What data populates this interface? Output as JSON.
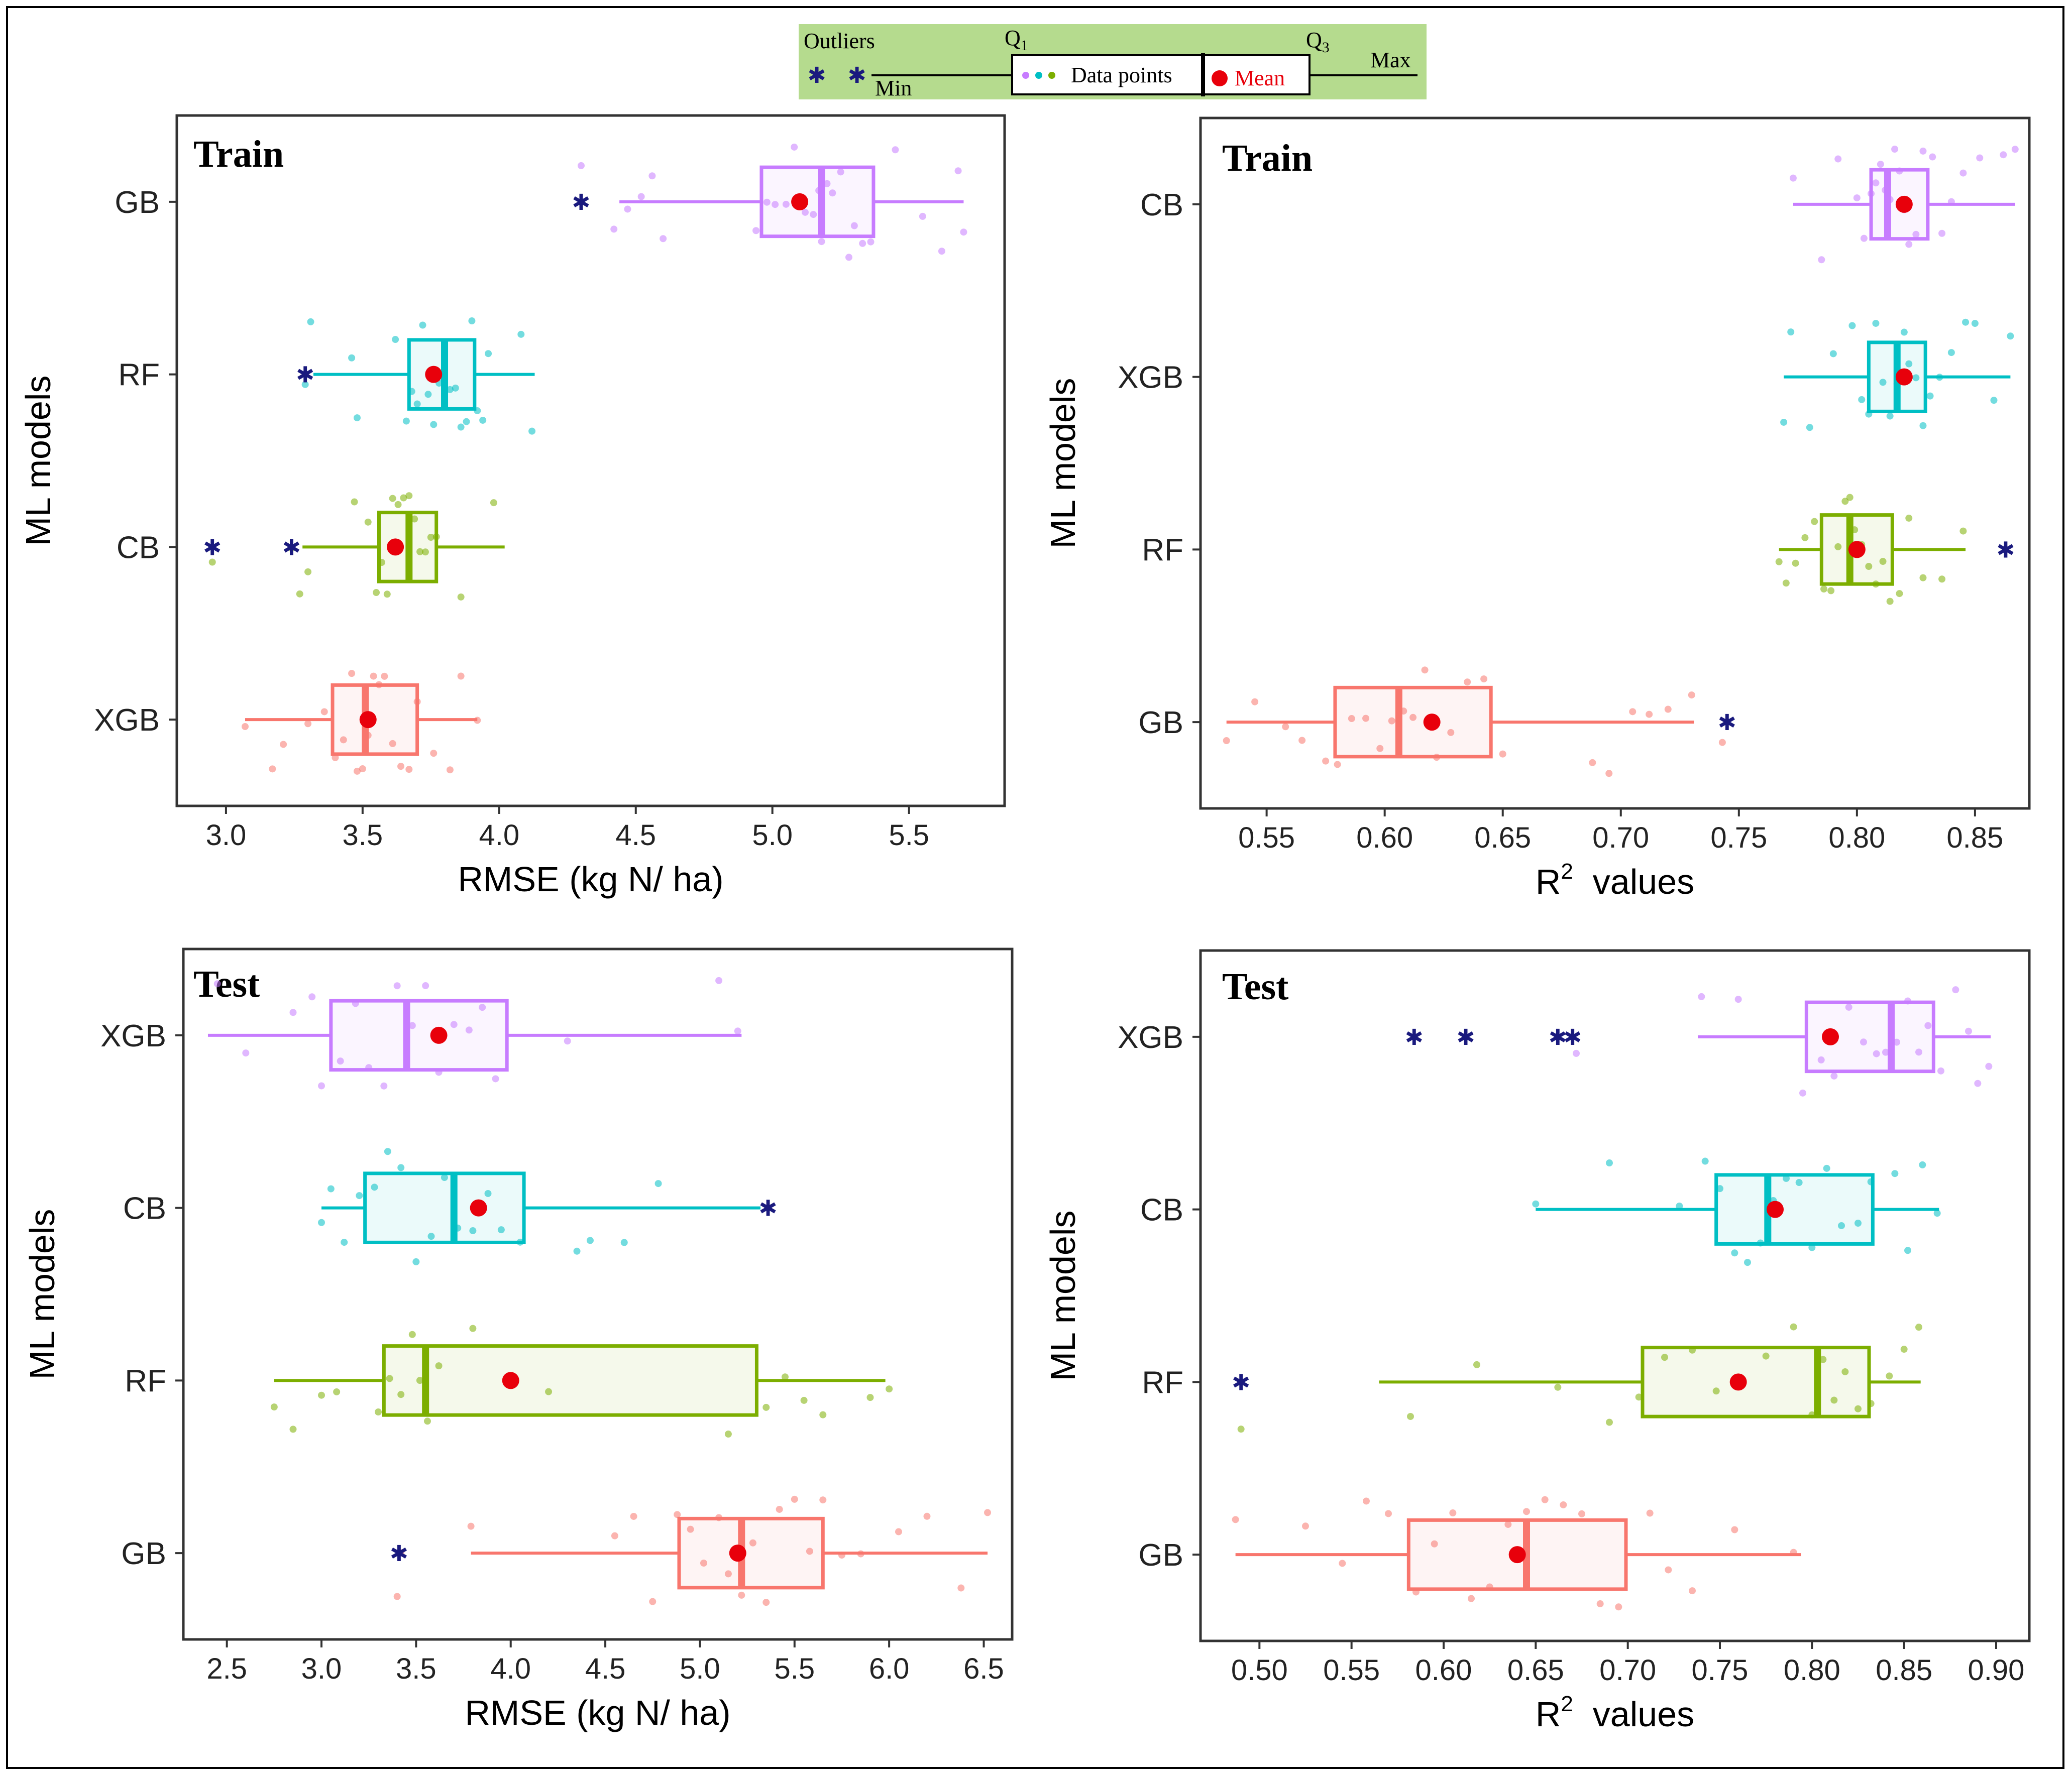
{
  "colors": {
    "purple": "#C77CFF",
    "cyan": "#00BFC4",
    "green": "#7CAE00",
    "salmon": "#F8766D",
    "outlier": "#1A1A7E",
    "mean": "#E8000B",
    "legend_bg": "#B5DB8E",
    "frame": "#000000",
    "panel_border": "#333333"
  },
  "legend": {
    "outliers": "Outliers",
    "min": "Min",
    "q1": "Q",
    "q1_sub": "1",
    "data_points": "Data points",
    "mean": "Mean",
    "q3": "Q",
    "q3_sub": "3",
    "max": "Max"
  },
  "chart_data": [
    {
      "id": "train-rmse",
      "type": "boxplot",
      "orientation": "horizontal",
      "title": "Train",
      "xlabel": "RMSE (kg N/ ha)",
      "ylabel": "ML models",
      "xlim": [
        2.82,
        5.85
      ],
      "xticks": [
        3.0,
        3.5,
        4.0,
        4.5,
        5.0,
        5.5
      ],
      "tick_labels": [
        "3.0",
        "3.5",
        "4.0",
        "4.5",
        "5.0",
        "5.5"
      ],
      "categories": [
        "GB",
        "RF",
        "CB",
        "XGB"
      ],
      "series": [
        {
          "name": "GB",
          "color": "purple",
          "min": 4.44,
          "q1": 4.96,
          "median": 5.18,
          "q3": 5.37,
          "max": 5.7,
          "mean": 5.1,
          "outliers": [
            4.3
          ],
          "points": [
            4.3,
            4.42,
            4.47,
            4.52,
            4.56,
            4.6,
            4.94,
            4.98,
            5.01,
            5.05,
            5.08,
            5.12,
            5.15,
            5.17,
            5.18,
            5.2,
            5.22,
            5.25,
            5.28,
            5.3,
            5.33,
            5.36,
            5.45,
            5.55,
            5.62,
            5.68,
            5.7
          ]
        },
        {
          "name": "RF",
          "color": "cyan",
          "min": 3.32,
          "q1": 3.67,
          "median": 3.8,
          "q3": 3.91,
          "max": 4.13,
          "mean": 3.76,
          "outliers": [
            3.29
          ],
          "points": [
            3.29,
            3.31,
            3.46,
            3.48,
            3.62,
            3.66,
            3.68,
            3.7,
            3.72,
            3.74,
            3.76,
            3.78,
            3.8,
            3.82,
            3.84,
            3.86,
            3.88,
            3.9,
            3.92,
            3.94,
            3.96,
            4.08,
            4.12
          ]
        },
        {
          "name": "CB",
          "color": "green",
          "min": 3.28,
          "q1": 3.56,
          "median": 3.67,
          "q3": 3.77,
          "max": 4.02,
          "mean": 3.62,
          "outliers": [
            2.95,
            3.24
          ],
          "points": [
            2.95,
            3.24,
            3.27,
            3.3,
            3.47,
            3.52,
            3.55,
            3.57,
            3.59,
            3.61,
            3.63,
            3.65,
            3.67,
            3.69,
            3.71,
            3.73,
            3.75,
            3.77,
            3.86,
            3.98
          ]
        },
        {
          "name": "XGB",
          "color": "salmon",
          "min": 3.07,
          "q1": 3.39,
          "median": 3.51,
          "q3": 3.7,
          "max": 3.92,
          "mean": 3.52,
          "outliers": [],
          "points": [
            3.07,
            3.17,
            3.21,
            3.3,
            3.36,
            3.4,
            3.43,
            3.46,
            3.48,
            3.5,
            3.52,
            3.54,
            3.56,
            3.58,
            3.61,
            3.64,
            3.67,
            3.7,
            3.76,
            3.82,
            3.86,
            3.92
          ]
        }
      ]
    },
    {
      "id": "train-r2",
      "type": "boxplot",
      "orientation": "horizontal",
      "title": "Train",
      "xlabel": "R",
      "xlabel_sup": "2",
      "xlabel_rest": " values",
      "ylabel": "ML models",
      "xlim": [
        0.522,
        0.873
      ],
      "xticks": [
        0.55,
        0.6,
        0.65,
        0.7,
        0.75,
        0.8,
        0.85
      ],
      "tick_labels": [
        "0.55",
        "0.60",
        "0.65",
        "0.70",
        "0.75",
        "0.80",
        "0.85"
      ],
      "categories": [
        "CB",
        "XGB",
        "RF",
        "GB"
      ],
      "series": [
        {
          "name": "CB",
          "color": "purple",
          "min": 0.773,
          "q1": 0.806,
          "median": 0.813,
          "q3": 0.83,
          "max": 0.867,
          "mean": 0.82,
          "outliers": [],
          "points": [
            0.773,
            0.785,
            0.792,
            0.8,
            0.803,
            0.806,
            0.808,
            0.81,
            0.812,
            0.814,
            0.816,
            0.818,
            0.82,
            0.822,
            0.825,
            0.828,
            0.832,
            0.836,
            0.84,
            0.845,
            0.852,
            0.862,
            0.867
          ]
        },
        {
          "name": "XGB",
          "color": "cyan",
          "min": 0.769,
          "q1": 0.805,
          "median": 0.817,
          "q3": 0.829,
          "max": 0.865,
          "mean": 0.82,
          "outliers": [],
          "points": [
            0.769,
            0.772,
            0.78,
            0.79,
            0.798,
            0.802,
            0.805,
            0.808,
            0.811,
            0.814,
            0.817,
            0.82,
            0.822,
            0.825,
            0.828,
            0.831,
            0.835,
            0.84,
            0.846,
            0.85,
            0.858,
            0.865
          ]
        },
        {
          "name": "RF",
          "color": "green",
          "min": 0.767,
          "q1": 0.785,
          "median": 0.797,
          "q3": 0.815,
          "max": 0.846,
          "mean": 0.8,
          "outliers": [
            0.863
          ],
          "points": [
            0.767,
            0.77,
            0.774,
            0.778,
            0.782,
            0.786,
            0.789,
            0.792,
            0.795,
            0.797,
            0.799,
            0.802,
            0.805,
            0.808,
            0.811,
            0.814,
            0.818,
            0.822,
            0.828,
            0.836,
            0.845
          ]
        },
        {
          "name": "GB",
          "color": "salmon",
          "min": 0.533,
          "q1": 0.579,
          "median": 0.606,
          "q3": 0.645,
          "max": 0.731,
          "mean": 0.62,
          "outliers": [
            0.745
          ],
          "points": [
            0.533,
            0.545,
            0.558,
            0.565,
            0.575,
            0.58,
            0.586,
            0.592,
            0.598,
            0.603,
            0.608,
            0.612,
            0.617,
            0.622,
            0.628,
            0.635,
            0.642,
            0.65,
            0.688,
            0.695,
            0.705,
            0.712,
            0.72,
            0.73,
            0.743
          ]
        }
      ]
    },
    {
      "id": "test-rmse",
      "type": "boxplot",
      "orientation": "horizontal",
      "title": "Test",
      "xlabel": "RMSE (kg N/ ha)",
      "ylabel": "ML models",
      "xlim": [
        2.27,
        6.65
      ],
      "xticks": [
        2.5,
        3.0,
        3.5,
        4.0,
        4.5,
        5.0,
        5.5,
        6.0,
        6.5
      ],
      "tick_labels": [
        "2.5",
        "3.0",
        "3.5",
        "4.0",
        "4.5",
        "5.0",
        "5.5",
        "6.0",
        "6.5"
      ],
      "categories": [
        "XGB",
        "CB",
        "RF",
        "GB"
      ],
      "series": [
        {
          "name": "XGB",
          "color": "purple",
          "min": 2.4,
          "q1": 3.05,
          "median": 3.45,
          "q3": 3.98,
          "max": 5.22,
          "mean": 3.62,
          "outliers": [],
          "points": [
            2.45,
            2.6,
            2.85,
            2.95,
            3.0,
            3.1,
            3.18,
            3.25,
            3.33,
            3.4,
            3.48,
            3.55,
            3.62,
            3.7,
            3.78,
            3.85,
            3.92,
            4.3,
            5.1,
            5.2
          ]
        },
        {
          "name": "CB",
          "color": "cyan",
          "min": 3.0,
          "q1": 3.23,
          "median": 3.7,
          "q3": 4.07,
          "max": 5.32,
          "mean": 3.83,
          "outliers": [
            5.36
          ],
          "points": [
            3.0,
            3.05,
            3.12,
            3.2,
            3.28,
            3.35,
            3.42,
            3.5,
            3.58,
            3.65,
            3.72,
            3.8,
            3.88,
            3.95,
            4.05,
            4.35,
            4.42,
            4.6,
            4.78
          ]
        },
        {
          "name": "RF",
          "color": "green",
          "min": 2.75,
          "q1": 3.33,
          "median": 3.55,
          "q3": 5.3,
          "max": 5.98,
          "mean": 4.0,
          "outliers": [],
          "points": [
            2.75,
            2.85,
            3.0,
            3.08,
            3.3,
            3.36,
            3.42,
            3.48,
            3.52,
            3.56,
            3.62,
            3.8,
            4.2,
            5.15,
            5.35,
            5.45,
            5.55,
            5.65,
            5.9,
            6.0
          ]
        },
        {
          "name": "GB",
          "color": "salmon",
          "min": 3.79,
          "q1": 4.89,
          "median": 5.22,
          "q3": 5.65,
          "max": 6.52,
          "mean": 5.2,
          "outliers": [
            3.41
          ],
          "points": [
            3.4,
            3.42,
            3.79,
            4.55,
            4.65,
            4.75,
            4.88,
            4.95,
            5.02,
            5.1,
            5.15,
            5.22,
            5.28,
            5.35,
            5.42,
            5.5,
            5.58,
            5.65,
            5.75,
            5.85,
            6.05,
            6.2,
            6.38,
            6.52
          ]
        }
      ]
    },
    {
      "id": "test-r2",
      "type": "boxplot",
      "orientation": "horizontal",
      "title": "Test",
      "xlabel": "R",
      "xlabel_sup": "2",
      "xlabel_rest": " values",
      "ylabel": "ML models",
      "xlim": [
        0.468,
        0.918
      ],
      "xticks": [
        0.5,
        0.55,
        0.6,
        0.65,
        0.7,
        0.75,
        0.8,
        0.85,
        0.9
      ],
      "tick_labels": [
        "0.50",
        "0.55",
        "0.60",
        "0.65",
        "0.70",
        "0.75",
        "0.80",
        "0.85",
        "0.90"
      ],
      "categories": [
        "XGB",
        "CB",
        "RF",
        "GB"
      ],
      "series": [
        {
          "name": "XGB",
          "color": "purple",
          "min": 0.738,
          "q1": 0.797,
          "median": 0.843,
          "q3": 0.866,
          "max": 0.897,
          "mean": 0.81,
          "outliers": [
            0.584,
            0.612,
            0.662,
            0.67
          ],
          "points": [
            0.672,
            0.74,
            0.76,
            0.795,
            0.805,
            0.812,
            0.82,
            0.828,
            0.835,
            0.84,
            0.846,
            0.852,
            0.858,
            0.863,
            0.87,
            0.878,
            0.885,
            0.89,
            0.896
          ]
        },
        {
          "name": "CB",
          "color": "cyan",
          "min": 0.65,
          "q1": 0.748,
          "median": 0.776,
          "q3": 0.833,
          "max": 0.869,
          "mean": 0.78,
          "outliers": [],
          "points": [
            0.65,
            0.69,
            0.728,
            0.742,
            0.75,
            0.758,
            0.765,
            0.772,
            0.779,
            0.786,
            0.793,
            0.8,
            0.808,
            0.816,
            0.825,
            0.832,
            0.845,
            0.852,
            0.86,
            0.868
          ]
        },
        {
          "name": "RF",
          "color": "green",
          "min": 0.565,
          "q1": 0.708,
          "median": 0.803,
          "q3": 0.831,
          "max": 0.859,
          "mean": 0.76,
          "outliers": [
            0.49
          ],
          "points": [
            0.49,
            0.582,
            0.618,
            0.662,
            0.69,
            0.706,
            0.72,
            0.735,
            0.748,
            0.76,
            0.775,
            0.79,
            0.8,
            0.806,
            0.812,
            0.818,
            0.825,
            0.832,
            0.842,
            0.85,
            0.858
          ]
        },
        {
          "name": "GB",
          "color": "salmon",
          "min": 0.487,
          "q1": 0.581,
          "median": 0.645,
          "q3": 0.699,
          "max": 0.794,
          "mean": 0.64,
          "outliers": [],
          "points": [
            0.487,
            0.525,
            0.545,
            0.558,
            0.57,
            0.585,
            0.595,
            0.605,
            0.615,
            0.625,
            0.635,
            0.645,
            0.655,
            0.665,
            0.675,
            0.685,
            0.695,
            0.712,
            0.722,
            0.735,
            0.758,
            0.79
          ]
        }
      ]
    }
  ]
}
